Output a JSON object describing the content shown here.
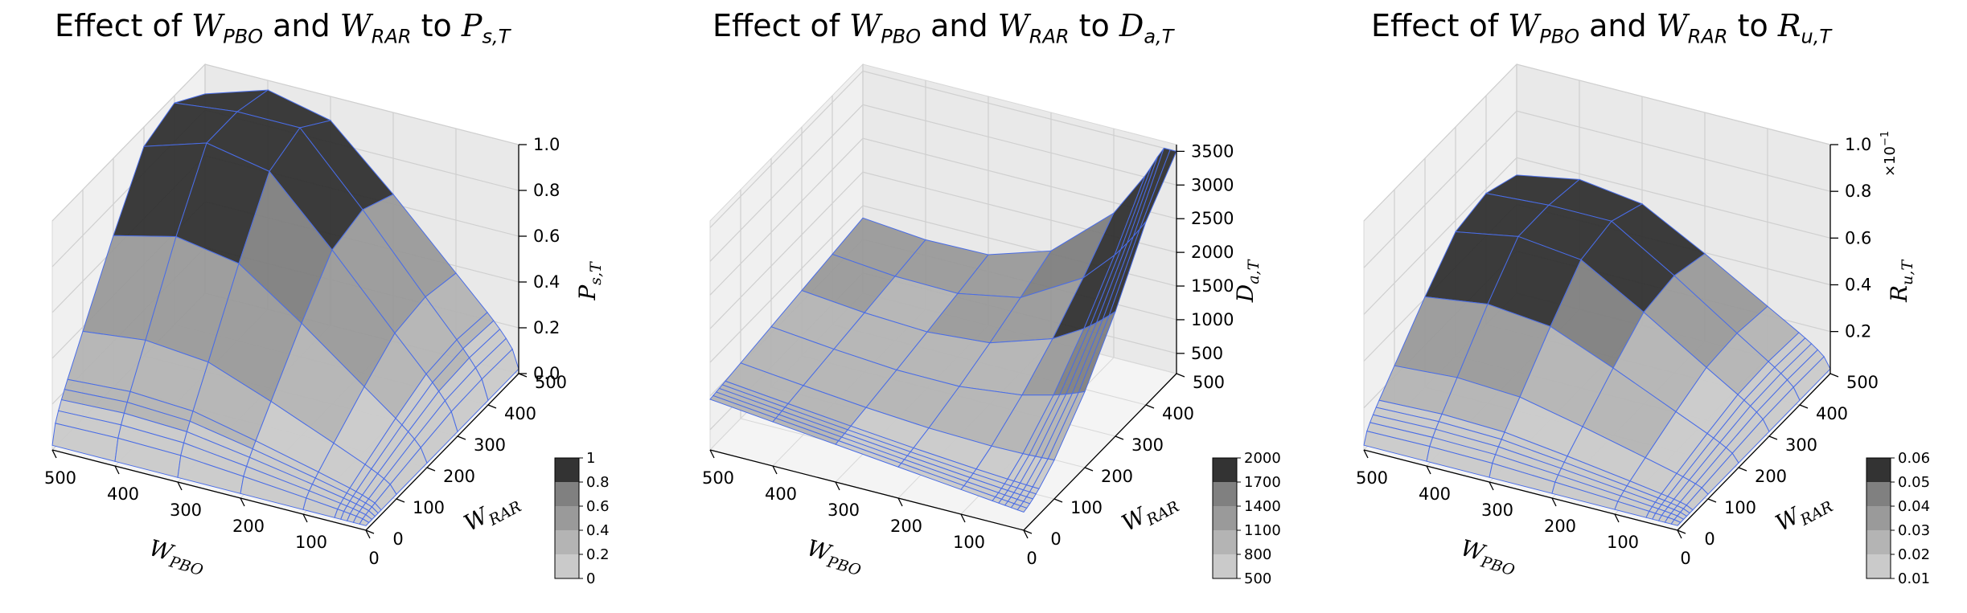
{
  "chart_data": [
    {
      "type": "surface3d",
      "title": {
        "prefix": "Effect of ",
        "w1": "W",
        "w1_sub": "PBO",
        "mid": " and ",
        "w2": "W",
        "w2_sub": "RAR",
        "to": " to ",
        "target": "P",
        "target_sub": "s,T"
      },
      "xlabel": {
        "main": "W",
        "sub": "PBO"
      },
      "ylabel": {
        "main": "W",
        "sub": "RAR"
      },
      "zlabel": {
        "main": "P",
        "sub": "s,T"
      },
      "xlim": [
        0,
        500
      ],
      "ylim": [
        0,
        500
      ],
      "zlim": [
        0,
        1
      ],
      "x_ticks": [
        "0",
        "100",
        "200",
        "300",
        "400",
        "500"
      ],
      "y_ticks": [
        "0",
        "100",
        "200",
        "300",
        "400",
        "500"
      ],
      "z_ticks": [
        "0.0",
        "0.2",
        "0.4",
        "0.6",
        "0.8",
        "1.0"
      ],
      "z_tick_values": [
        0,
        0.2,
        0.4,
        0.6,
        0.8,
        1.0
      ],
      "z_exponent": "",
      "x": [
        0,
        10,
        20,
        30,
        40,
        50,
        100,
        200,
        300,
        400,
        500
      ],
      "y": [
        0,
        10,
        20,
        30,
        40,
        50,
        100,
        200,
        300,
        400,
        500
      ],
      "z_shape": "plateau",
      "z_max": 1.0,
      "z_min": 0.02,
      "colorbar": {
        "ticks": [
          "0",
          "0.2",
          "0.4",
          "0.6",
          "0.8",
          "1"
        ],
        "levels": [
          0,
          0.2,
          0.4,
          0.6,
          0.8,
          1
        ]
      }
    },
    {
      "type": "surface3d",
      "title": {
        "prefix": "Effect of ",
        "w1": "W",
        "w1_sub": "PBO",
        "mid": " and ",
        "w2": "W",
        "w2_sub": "RAR",
        "to": " to ",
        "target": "D",
        "target_sub": "a,T"
      },
      "xlabel": {
        "main": "W",
        "sub": "PBO"
      },
      "ylabel": {
        "main": "W",
        "sub": "RAR"
      },
      "zlabel": {
        "main": "D",
        "sub": "a,T"
      },
      "xlim": [
        0,
        500
      ],
      "ylim": [
        0,
        500
      ],
      "zlim": [
        200,
        3600
      ],
      "x_ticks": [
        "0",
        "100",
        "200",
        "300",
        "400",
        "500"
      ],
      "y_ticks": [
        "0",
        "100",
        "200",
        "300",
        "400",
        "500"
      ],
      "z_ticks": [
        "500",
        "1000",
        "1500",
        "2000",
        "2500",
        "3000",
        "3500"
      ],
      "z_tick_values": [
        500,
        1000,
        1500,
        2000,
        2500,
        3000,
        3500
      ],
      "z_exponent": "",
      "x": [
        0,
        10,
        20,
        30,
        40,
        50,
        100,
        200,
        300,
        400,
        500
      ],
      "y": [
        0,
        10,
        20,
        30,
        40,
        50,
        100,
        200,
        300,
        400,
        500
      ],
      "z_shape": "ramp",
      "z_max": 3500,
      "z_min": 250,
      "colorbar": {
        "ticks": [
          "500",
          "800",
          "1100",
          "1400",
          "1700",
          "2000"
        ],
        "levels": [
          500,
          800,
          1100,
          1400,
          1700,
          2000
        ]
      }
    },
    {
      "type": "surface3d",
      "title": {
        "prefix": "Effect of ",
        "w1": "W",
        "w1_sub": "PBO",
        "mid": " and ",
        "w2": "W",
        "w2_sub": "RAR",
        "to": " to ",
        "target": "R",
        "target_sub": "u,T"
      },
      "xlabel": {
        "main": "W",
        "sub": "PBO"
      },
      "ylabel": {
        "main": "W",
        "sub": "RAR"
      },
      "zlabel": {
        "main": "R",
        "sub": "u,T"
      },
      "xlim": [
        0,
        500
      ],
      "ylim": [
        0,
        500
      ],
      "zlim": [
        0.002,
        0.1
      ],
      "x_ticks": [
        "0",
        "100",
        "200",
        "300",
        "400",
        "500"
      ],
      "y_ticks": [
        "0",
        "100",
        "200",
        "300",
        "400",
        "500"
      ],
      "z_ticks": [
        "0.2",
        "0.4",
        "0.6",
        "0.8",
        "1.0"
      ],
      "z_tick_values": [
        0.02,
        0.04,
        0.06,
        0.08,
        0.1
      ],
      "z_exponent": "×10",
      "z_exponent_power": "−1",
      "x": [
        0,
        10,
        20,
        30,
        40,
        50,
        100,
        200,
        300,
        400,
        500
      ],
      "y": [
        0,
        10,
        20,
        30,
        40,
        50,
        100,
        200,
        300,
        400,
        500
      ],
      "z_shape": "plateau",
      "z_max": 0.06,
      "z_min": 0.004,
      "colorbar": {
        "ticks": [
          "0.01",
          "0.02",
          "0.03",
          "0.04",
          "0.05",
          "0.06"
        ],
        "levels": [
          0.01,
          0.02,
          0.03,
          0.04,
          0.05,
          0.06
        ]
      }
    }
  ]
}
